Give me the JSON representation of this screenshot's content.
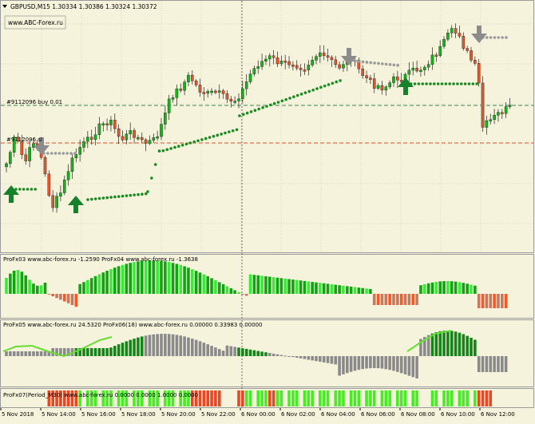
{
  "main_panel": {
    "symbol_line": "GBPUSD,M15  1.30334 1.30386 1.30324 1.30372",
    "site_label": "www.ABC-Forex.ru",
    "order_label_1": "#9112096 buy 0.01",
    "order_label_2": "#9112096 sl",
    "colors": {
      "bull": "#18b21a",
      "bear": "#e5542a",
      "support": "#1a8a22",
      "resistance": "#9a9a9a",
      "arrow_up": "#15822a",
      "arrow_down": "#8c8c8c"
    }
  },
  "indicator_1": {
    "label": "ProFx03 www.abc-forex.ru -1.2590  ProFx04 www.abc-forex.ru -1.3638"
  },
  "indicator_2": {
    "label": "ProFx05 www.abc-forex.ru 24.5320  ProFx06(18) www.abc-forex.ru 0.00000 0.33983 0.00000"
  },
  "indicator_3": {
    "label": "ProFx07(Period_M30) www.abc-forex.ru 0.0000 0.0000 1.0000 0.0000"
  },
  "time_axis": {
    "labels": [
      "5 Nov 2018",
      "5 Nov 14:00",
      "5 Nov 16:00",
      "5 Nov 18:00",
      "5 Nov 20:00",
      "5 Nov 22:00",
      "6 Nov 00:00",
      "6 Nov 02:00",
      "6 Nov 04:00",
      "6 Nov 06:00",
      "6 Nov 08:00",
      "6 Nov 10:00",
      "6 Nov 12:00"
    ]
  }
}
